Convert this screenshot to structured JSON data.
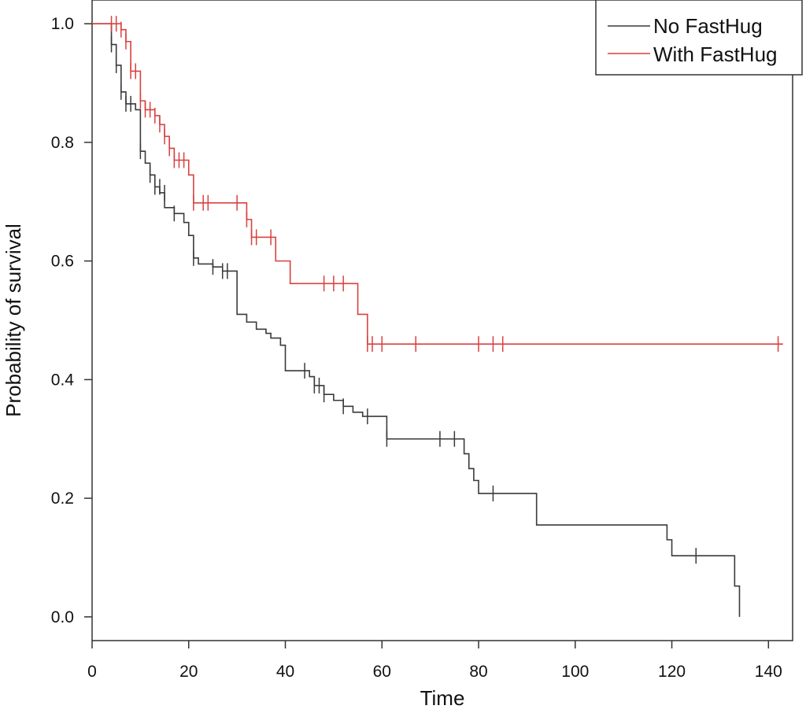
{
  "chart_data": {
    "type": "line",
    "step": true,
    "title": "",
    "xlabel": "Time",
    "ylabel": "Probability of survival",
    "xlim": [
      0,
      145
    ],
    "ylim": [
      -0.04,
      1.04
    ],
    "xticks": [
      0,
      20,
      40,
      60,
      80,
      100,
      120,
      140
    ],
    "xtick_labels": [
      "0",
      "20",
      "40",
      "60",
      "80",
      "100",
      "120",
      "140"
    ],
    "yticks": [
      0.0,
      0.2,
      0.4,
      0.6,
      0.8,
      1.0
    ],
    "ytick_labels": [
      "0.0",
      "0.2",
      "0.4",
      "0.6",
      "0.8",
      "1.0"
    ],
    "grid": false,
    "legend_position": "top-right",
    "series": [
      {
        "name": "No FastHug",
        "color": "#3a3a3a",
        "steps": [
          [
            0,
            1.0
          ],
          [
            4,
            0.965
          ],
          [
            5,
            0.93
          ],
          [
            6,
            0.885
          ],
          [
            7,
            0.865
          ],
          [
            9,
            0.855
          ],
          [
            10,
            0.785
          ],
          [
            11,
            0.765
          ],
          [
            12,
            0.745
          ],
          [
            13,
            0.725
          ],
          [
            14,
            0.715
          ],
          [
            15,
            0.69
          ],
          [
            17,
            0.68
          ],
          [
            19,
            0.665
          ],
          [
            20,
            0.643
          ],
          [
            21,
            0.605
          ],
          [
            22,
            0.595
          ],
          [
            25,
            0.59
          ],
          [
            27,
            0.583
          ],
          [
            30,
            0.51
          ],
          [
            32,
            0.497
          ],
          [
            34,
            0.485
          ],
          [
            36,
            0.478
          ],
          [
            37,
            0.47
          ],
          [
            39,
            0.458
          ],
          [
            40,
            0.415
          ],
          [
            45,
            0.405
          ],
          [
            46,
            0.39
          ],
          [
            48,
            0.375
          ],
          [
            50,
            0.365
          ],
          [
            52,
            0.355
          ],
          [
            54,
            0.345
          ],
          [
            56,
            0.338
          ],
          [
            61,
            0.3
          ],
          [
            77,
            0.275
          ],
          [
            78,
            0.25
          ],
          [
            79,
            0.23
          ],
          [
            80,
            0.208
          ],
          [
            92,
            0.155
          ],
          [
            119,
            0.13
          ],
          [
            120,
            0.103
          ],
          [
            133,
            0.052
          ],
          [
            134,
            0.0
          ]
        ],
        "censored": [
          [
            4,
            0.965
          ],
          [
            5,
            0.93
          ],
          [
            6,
            0.885
          ],
          [
            7,
            0.865
          ],
          [
            8,
            0.865
          ],
          [
            10,
            0.785
          ],
          [
            12,
            0.745
          ],
          [
            13,
            0.725
          ],
          [
            14,
            0.725
          ],
          [
            15,
            0.715
          ],
          [
            17,
            0.68
          ],
          [
            21,
            0.605
          ],
          [
            25,
            0.59
          ],
          [
            27,
            0.583
          ],
          [
            28,
            0.583
          ],
          [
            44,
            0.415
          ],
          [
            46,
            0.39
          ],
          [
            47,
            0.39
          ],
          [
            48,
            0.375
          ],
          [
            52,
            0.355
          ],
          [
            57,
            0.338
          ],
          [
            61,
            0.3
          ],
          [
            72,
            0.3
          ],
          [
            75,
            0.3
          ],
          [
            83,
            0.208
          ],
          [
            125,
            0.103
          ]
        ]
      },
      {
        "name": "With FastHug",
        "color": "#d9413f",
        "steps": [
          [
            0,
            1.0
          ],
          [
            6,
            0.99
          ],
          [
            7,
            0.97
          ],
          [
            8,
            0.92
          ],
          [
            10,
            0.87
          ],
          [
            11,
            0.855
          ],
          [
            13,
            0.845
          ],
          [
            14,
            0.83
          ],
          [
            15,
            0.81
          ],
          [
            16,
            0.79
          ],
          [
            17,
            0.77
          ],
          [
            19,
            0.77
          ],
          [
            20,
            0.745
          ],
          [
            21,
            0.698
          ],
          [
            30,
            0.698
          ],
          [
            32,
            0.67
          ],
          [
            33,
            0.64
          ],
          [
            38,
            0.6
          ],
          [
            41,
            0.562
          ],
          [
            55,
            0.51
          ],
          [
            57,
            0.46
          ],
          [
            143,
            0.46
          ]
        ],
        "censored": [
          [
            4,
            1.0
          ],
          [
            5,
            1.0
          ],
          [
            6,
            0.99
          ],
          [
            7,
            0.97
          ],
          [
            8,
            0.92
          ],
          [
            9,
            0.92
          ],
          [
            10,
            0.87
          ],
          [
            11,
            0.855
          ],
          [
            12,
            0.855
          ],
          [
            13,
            0.845
          ],
          [
            14,
            0.83
          ],
          [
            15,
            0.81
          ],
          [
            16,
            0.79
          ],
          [
            17,
            0.77
          ],
          [
            18,
            0.77
          ],
          [
            19,
            0.77
          ],
          [
            21,
            0.698
          ],
          [
            23,
            0.698
          ],
          [
            24,
            0.698
          ],
          [
            30,
            0.698
          ],
          [
            32,
            0.67
          ],
          [
            33,
            0.64
          ],
          [
            34,
            0.64
          ],
          [
            37,
            0.64
          ],
          [
            48,
            0.562
          ],
          [
            50,
            0.562
          ],
          [
            52,
            0.562
          ],
          [
            57,
            0.46
          ],
          [
            58,
            0.46
          ],
          [
            60,
            0.46
          ],
          [
            67,
            0.46
          ],
          [
            80,
            0.46
          ],
          [
            83,
            0.46
          ],
          [
            85,
            0.46
          ],
          [
            142,
            0.46
          ]
        ]
      }
    ]
  }
}
